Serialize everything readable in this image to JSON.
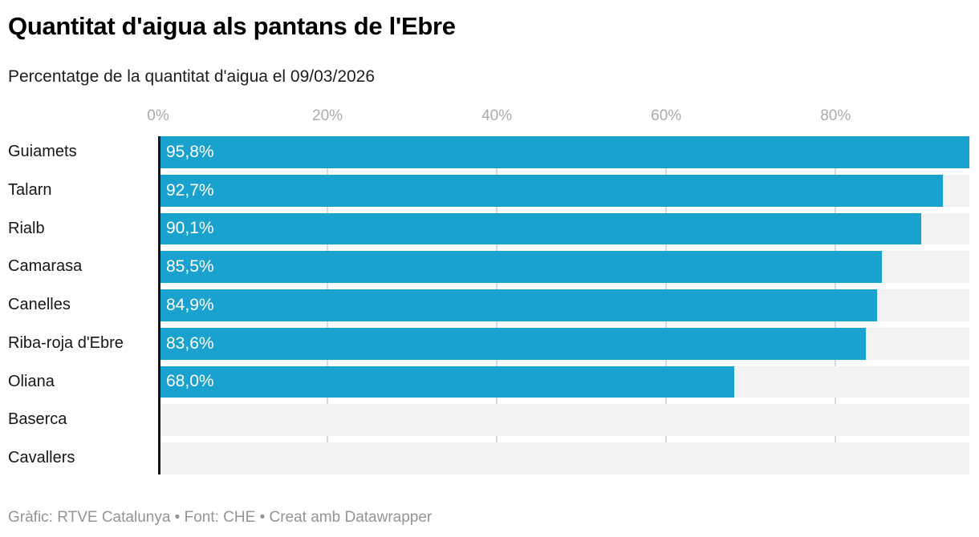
{
  "header": {
    "title": "Quantitat d'aigua als pantans de l'Ebre",
    "subtitle": "Percentatge de la quantitat d'aigua el 09/03/2026"
  },
  "footer": {
    "text": "Gràfic: RTVE Catalunya • Font: CHE • Creat amb Datawrapper"
  },
  "chart_data": {
    "type": "bar",
    "orientation": "horizontal",
    "title": "Quantitat d'aigua als pantans de l'Ebre",
    "subtitle": "Percentatge de la quantitat d'aigua el 09/03/2026",
    "categories": [
      "Guiamets",
      "Talarn",
      "Rialb",
      "Camarasa",
      "Canelles",
      "Riba-roja d'Ebre",
      "Oliana",
      "Baserca",
      "Cavallers"
    ],
    "values": [
      95.8,
      92.7,
      90.1,
      85.5,
      84.9,
      83.6,
      68.0,
      null,
      null
    ],
    "value_labels": [
      "95,8%",
      "92,7%",
      "90,1%",
      "85,5%",
      "84,9%",
      "83,6%",
      "68,0%",
      "",
      ""
    ],
    "x_ticks": [
      0,
      20,
      40,
      60,
      80
    ],
    "x_tick_labels": [
      "0%",
      "20%",
      "40%",
      "60%",
      "80%"
    ],
    "x_max": 95.8,
    "xlim": [
      0,
      95.8
    ],
    "grid": true,
    "legend": "none",
    "colors": {
      "bar": "#1aa1cd",
      "row_background": "#f2f2f2",
      "gridline": "#d9d9d9",
      "axis_line": "#141414",
      "tick_label": "#ababab",
      "value_label": "#ffffff"
    }
  }
}
